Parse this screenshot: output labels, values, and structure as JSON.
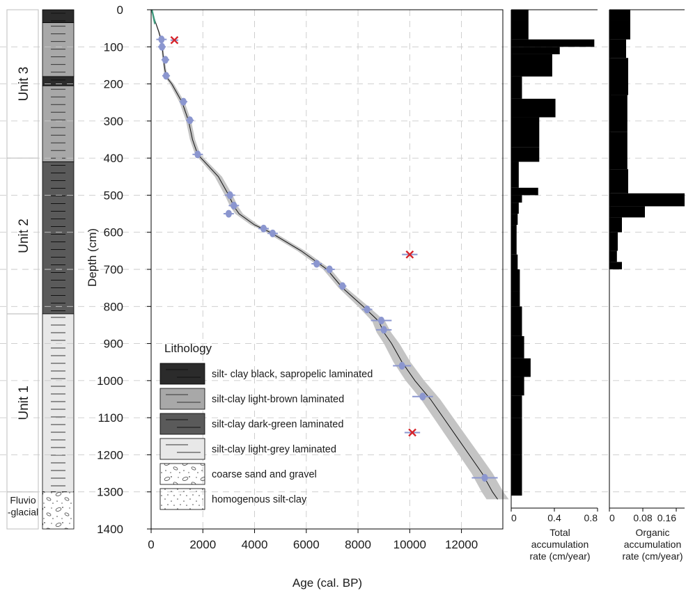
{
  "colors": {
    "black_sapropelic": "#2b2b2b",
    "light_brown": "#a8a8a8",
    "dark_green": "#5a5a5a",
    "light_grey": "#e8e8e8",
    "date_marker": "#8b96cf",
    "outlier_marker": "#d6232a",
    "surface_marker": "#3e9a7d",
    "envelope": "#c4c4c4",
    "bars": "#000000"
  },
  "units": [
    {
      "label": "Unit 3",
      "top": 0,
      "bottom": 400
    },
    {
      "label": "Unit 2",
      "top": 400,
      "bottom": 820
    },
    {
      "label": "Unit 1",
      "top": 820,
      "bottom": 1300
    },
    {
      "label": "Fluvio\n-glacial",
      "top": 1300,
      "bottom": 1400
    }
  ],
  "lithology_column": [
    {
      "type": "black",
      "top": 0,
      "bottom": 35
    },
    {
      "type": "light_brown",
      "top": 35,
      "bottom": 180
    },
    {
      "type": "black",
      "top": 180,
      "bottom": 205
    },
    {
      "type": "light_brown",
      "top": 205,
      "bottom": 410
    },
    {
      "type": "dark_green",
      "top": 410,
      "bottom": 820
    },
    {
      "type": "light_grey",
      "top": 820,
      "bottom": 1300
    },
    {
      "type": "gravel",
      "top": 1300,
      "bottom": 1400
    }
  ],
  "legend": {
    "title": "Lithology",
    "items": [
      {
        "type": "black",
        "label": "silt- clay black, sapropelic laminated"
      },
      {
        "type": "light_brown",
        "label": "silt-clay light-brown laminated"
      },
      {
        "type": "dark_green",
        "label": "silt-clay dark-green laminated"
      },
      {
        "type": "light_grey",
        "label": "silt-clay light-grey laminated"
      },
      {
        "type": "gravel",
        "label": "coarse sand and gravel"
      },
      {
        "type": "homog",
        "label": "homogenous silt-clay"
      }
    ]
  },
  "chart_data": [
    {
      "type": "line",
      "xlabel": "Age (cal. BP)",
      "ylabel": "Depth (cm)",
      "xlim": [
        0,
        13600
      ],
      "ylim": [
        1400,
        0
      ],
      "x_ticks": [
        "0",
        "2000",
        "4000",
        "6000",
        "8000",
        "10000",
        "12000"
      ],
      "y_ticks": [
        "0",
        "100",
        "200",
        "300",
        "400",
        "500",
        "600",
        "700",
        "800",
        "900",
        "1000",
        "1100",
        "1200",
        "1300",
        "1400"
      ],
      "grid": true,
      "age_model": {
        "depth": [
          0,
          30,
          60,
          80,
          100,
          130,
          160,
          180,
          200,
          250,
          300,
          350,
          390,
          420,
          450,
          500,
          530,
          550,
          580,
          600,
          650,
          700,
          750,
          800,
          840,
          870,
          900,
          950,
          1000,
          1050,
          1100,
          1150,
          1200,
          1250,
          1300,
          1320
        ],
        "age": [
          0,
          150,
          300,
          380,
          430,
          470,
          530,
          580,
          800,
          1200,
          1450,
          1600,
          1800,
          2200,
          2600,
          3000,
          3200,
          3400,
          4000,
          4600,
          5800,
          6800,
          7400,
          8200,
          8800,
          9000,
          9300,
          9700,
          10200,
          10800,
          11300,
          11800,
          12300,
          12800,
          13200,
          13400
        ],
        "envelope_half_width": [
          0,
          20,
          30,
          40,
          40,
          40,
          50,
          60,
          80,
          100,
          100,
          100,
          100,
          120,
          140,
          150,
          150,
          150,
          150,
          150,
          150,
          150,
          150,
          200,
          250,
          280,
          300,
          330,
          360,
          370,
          380,
          390,
          400,
          410,
          420,
          430
        ]
      },
      "dated_samples": [
        {
          "age": 400,
          "depth": 80,
          "err": 200
        },
        {
          "age": 420,
          "depth": 100,
          "err": 150
        },
        {
          "age": 550,
          "depth": 135,
          "err": 150
        },
        {
          "age": 580,
          "depth": 178,
          "err": 150
        },
        {
          "age": 1250,
          "depth": 248,
          "err": 150
        },
        {
          "age": 1500,
          "depth": 298,
          "err": 150
        },
        {
          "age": 1800,
          "depth": 390,
          "err": 200
        },
        {
          "age": 3050,
          "depth": 500,
          "err": 200
        },
        {
          "age": 3200,
          "depth": 528,
          "err": 200
        },
        {
          "age": 3000,
          "depth": 550,
          "err": 200
        },
        {
          "age": 4350,
          "depth": 590,
          "err": 200
        },
        {
          "age": 4700,
          "depth": 603,
          "err": 200
        },
        {
          "age": 6400,
          "depth": 685,
          "err": 200
        },
        {
          "age": 6900,
          "depth": 700,
          "err": 200
        },
        {
          "age": 7400,
          "depth": 745,
          "err": 150
        },
        {
          "age": 8350,
          "depth": 808,
          "err": 200
        },
        {
          "age": 8900,
          "depth": 838,
          "err": 400
        },
        {
          "age": 9000,
          "depth": 863,
          "err": 300
        },
        {
          "age": 9700,
          "depth": 960,
          "err": 350
        },
        {
          "age": 10500,
          "depth": 1043,
          "err": 400
        },
        {
          "age": 12900,
          "depth": 1262,
          "err": 500
        }
      ],
      "rejected_samples": [
        {
          "age": 900,
          "depth": 82,
          "err": 150
        },
        {
          "age": 10000,
          "depth": 660,
          "err": 300
        },
        {
          "age": 10100,
          "depth": 1140,
          "err": 300
        }
      ]
    },
    {
      "type": "bar",
      "xlabel": "Total\naccumulation\nrate (cm/year)",
      "xlim": [
        0,
        0.8
      ],
      "x_ticks": [
        "0",
        "0.4",
        "0.8"
      ],
      "depth_bins": [
        0,
        30,
        80,
        100,
        120,
        180,
        240,
        290,
        370,
        410,
        480,
        500,
        520,
        550,
        580,
        660,
        700,
        760,
        800,
        880,
        940,
        990,
        1040,
        1100,
        1200,
        1310
      ],
      "values": [
        0.16,
        0.16,
        0.77,
        0.45,
        0.38,
        0.1,
        0.41,
        0.26,
        0.26,
        0.07,
        0.25,
        0.1,
        0.07,
        0.06,
        0.05,
        0.06,
        0.08,
        0.08,
        0.1,
        0.12,
        0.18,
        0.12,
        0.1,
        0.1,
        0.1
      ]
    },
    {
      "type": "bar",
      "xlabel": "Organic\naccumulation\nrate (cm/year)",
      "xlim": [
        0,
        0.18
      ],
      "x_ticks": [
        "0",
        "0.08",
        "0.16"
      ],
      "depth_bins": [
        0,
        30,
        80,
        130,
        230,
        330,
        430,
        495,
        530,
        560,
        600,
        650,
        680,
        700
      ],
      "values": [
        0.05,
        0.05,
        0.04,
        0.045,
        0.043,
        0.043,
        0.045,
        0.18,
        0.085,
        0.03,
        0.02,
        0.018,
        0.03
      ]
    }
  ]
}
